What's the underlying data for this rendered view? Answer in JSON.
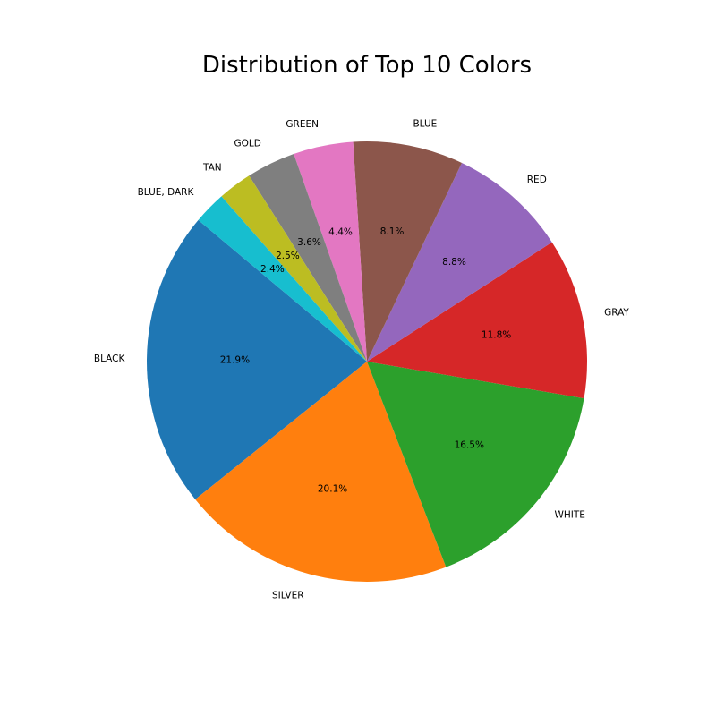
{
  "chart_data": {
    "type": "pie",
    "title": "Distribution of Top 10 Colors",
    "start_angle_deg": 140,
    "direction": "counterclockwise",
    "slices": [
      {
        "label": "BLACK",
        "value": 21.9,
        "pct_label": "21.9%",
        "color": "#1f77b4"
      },
      {
        "label": "SILVER",
        "value": 20.1,
        "pct_label": "20.1%",
        "color": "#ff7f0e"
      },
      {
        "label": "WHITE",
        "value": 16.5,
        "pct_label": "16.5%",
        "color": "#2ca02c"
      },
      {
        "label": "GRAY",
        "value": 11.8,
        "pct_label": "11.8%",
        "color": "#d62728"
      },
      {
        "label": "RED",
        "value": 8.8,
        "pct_label": "8.8%",
        "color": "#9467bd"
      },
      {
        "label": "BLUE",
        "value": 8.1,
        "pct_label": "8.1%",
        "color": "#8c564b"
      },
      {
        "label": "GREEN",
        "value": 4.4,
        "pct_label": "4.4%",
        "color": "#e377c2"
      },
      {
        "label": "GOLD",
        "value": 3.6,
        "pct_label": "3.6%",
        "color": "#7f7f7f"
      },
      {
        "label": "TAN",
        "value": 2.5,
        "pct_label": "2.5%",
        "color": "#bcbd22"
      },
      {
        "label": "BLUE, DARK",
        "value": 2.4,
        "pct_label": "2.4%",
        "color": "#17becf"
      }
    ]
  }
}
